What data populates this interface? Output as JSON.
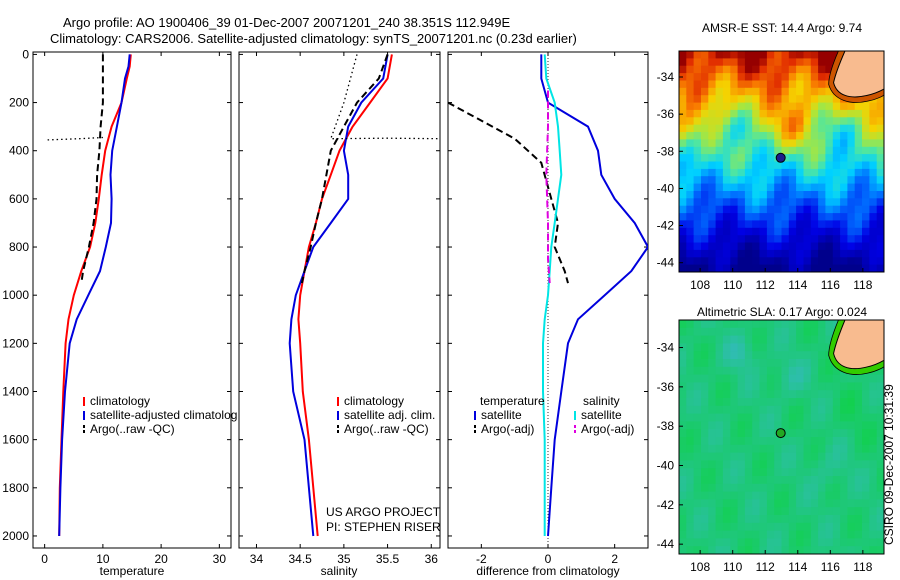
{
  "header": {
    "line1": "Argo profile: AO 1900406_39 01-Dec-2007 20071201_240 38.351S 112.949E",
    "line2": "Climatology: CARS2006. Satellite-adjusted climatology: synTS_20071201.nc (0.23d earlier)"
  },
  "side_text": "CSIRO 09-Dec-2007 10:31:39",
  "colors": {
    "climatology": "#ff0000",
    "satellite": "#0000dd",
    "argo": "#000000",
    "satellite_salinity": "#00e5e5",
    "argo_adj_salinity": "#e000e0",
    "land": "#f8bb8f"
  },
  "chart_data": [
    {
      "type": "line",
      "panel": "temperature",
      "xlabel": "temperature",
      "ylabel": "",
      "xlim": [
        -2,
        32
      ],
      "ylim": [
        2050,
        -10
      ],
      "y_reversed": true,
      "xticks": [
        0,
        10,
        20,
        30
      ],
      "yticks": [
        0,
        200,
        400,
        600,
        800,
        1000,
        1200,
        1400,
        1600,
        1800,
        2000
      ],
      "legend": [
        "climatology",
        "satellite-adjusted climatolog",
        "Argo(..raw -QC)"
      ],
      "series": [
        {
          "name": "climatology",
          "style": "solid",
          "color": "#ff0000",
          "points": [
            [
              14.8,
              0
            ],
            [
              14.6,
              50
            ],
            [
              14.1,
              100
            ],
            [
              13.2,
              200
            ],
            [
              11.5,
              300
            ],
            [
              10.4,
              400
            ],
            [
              9.8,
              500
            ],
            [
              9.3,
              600
            ],
            [
              8.7,
              700
            ],
            [
              7.8,
              800
            ],
            [
              6.3,
              900
            ],
            [
              5.0,
              1000
            ],
            [
              4.1,
              1100
            ],
            [
              3.6,
              1200
            ],
            [
              3.2,
              1400
            ],
            [
              2.9,
              1600
            ],
            [
              2.6,
              1800
            ],
            [
              2.5,
              2000
            ]
          ]
        },
        {
          "name": "satellite-adjusted climatolog",
          "style": "solid",
          "color": "#0000dd",
          "points": [
            [
              14.6,
              0
            ],
            [
              14.4,
              50
            ],
            [
              13.8,
              100
            ],
            [
              13.2,
              200
            ],
            [
              12.4,
              300
            ],
            [
              11.6,
              400
            ],
            [
              11.3,
              500
            ],
            [
              11.5,
              600
            ],
            [
              11.4,
              700
            ],
            [
              10.5,
              800
            ],
            [
              9.5,
              900
            ],
            [
              7.5,
              1000
            ],
            [
              5.5,
              1100
            ],
            [
              4.3,
              1200
            ],
            [
              3.5,
              1400
            ],
            [
              3.0,
              1600
            ],
            [
              2.7,
              1800
            ],
            [
              2.5,
              2000
            ]
          ]
        },
        {
          "name": "Argo(..raw -QC)",
          "style": "dashed",
          "color": "#000000",
          "points": [
            [
              10.0,
              0
            ],
            [
              10.0,
              100
            ],
            [
              10.0,
              200
            ],
            [
              9.6,
              300
            ],
            [
              9.4,
              400
            ],
            [
              9.0,
              500
            ],
            [
              8.9,
              600
            ],
            [
              8.4,
              700
            ],
            [
              7.6,
              800
            ],
            [
              6.6,
              900
            ],
            [
              6.3,
              950
            ]
          ]
        },
        {
          "name": "",
          "style": "dotted",
          "color": "#000000",
          "points": [
            [
              0.5,
              355
            ],
            [
              6,
              350
            ],
            [
              10,
              345
            ]
          ]
        }
      ]
    },
    {
      "type": "line",
      "panel": "salinity",
      "xlabel": "salinity",
      "ylabel": "",
      "xlim": [
        33.8,
        36.1
      ],
      "ylim": [
        2050,
        -10
      ],
      "y_reversed": true,
      "xticks": [
        34,
        34.5,
        35,
        35.5,
        36
      ],
      "legend": [
        "climatology",
        "satellite adj. clim.",
        "Argo(..raw -QC)"
      ],
      "annotations": [
        "US ARGO PROJECT",
        "PI: STEPHEN RISER"
      ],
      "series": [
        {
          "name": "climatology",
          "style": "solid",
          "color": "#ff0000",
          "points": [
            [
              35.55,
              0
            ],
            [
              35.5,
              100
            ],
            [
              35.3,
              200
            ],
            [
              35.1,
              300
            ],
            [
              34.95,
              400
            ],
            [
              34.85,
              500
            ],
            [
              34.75,
              600
            ],
            [
              34.68,
              700
            ],
            [
              34.6,
              800
            ],
            [
              34.55,
              900
            ],
            [
              34.5,
              1000
            ],
            [
              34.48,
              1100
            ],
            [
              34.5,
              1200
            ],
            [
              34.53,
              1400
            ],
            [
              34.6,
              1600
            ],
            [
              34.65,
              1800
            ],
            [
              34.7,
              2000
            ]
          ]
        },
        {
          "name": "satellite adj. clim.",
          "style": "solid",
          "color": "#0000dd",
          "points": [
            [
              35.5,
              0
            ],
            [
              35.45,
              100
            ],
            [
              35.2,
              200
            ],
            [
              35.05,
              300
            ],
            [
              35.0,
              400
            ],
            [
              35.05,
              500
            ],
            [
              35.05,
              600
            ],
            [
              34.85,
              700
            ],
            [
              34.65,
              800
            ],
            [
              34.55,
              900
            ],
            [
              34.45,
              1000
            ],
            [
              34.4,
              1100
            ],
            [
              34.38,
              1200
            ],
            [
              34.42,
              1400
            ],
            [
              34.55,
              1600
            ],
            [
              34.6,
              1800
            ],
            [
              34.65,
              2000
            ]
          ]
        },
        {
          "name": "Argo(..raw -QC)",
          "style": "dashed",
          "color": "#000000",
          "points": [
            [
              35.5,
              0
            ],
            [
              35.4,
              100
            ],
            [
              35.15,
              200
            ],
            [
              35.0,
              300
            ],
            [
              34.85,
              400
            ],
            [
              34.8,
              500
            ],
            [
              34.75,
              600
            ],
            [
              34.68,
              700
            ],
            [
              34.62,
              800
            ],
            [
              34.55,
              900
            ],
            [
              34.52,
              950
            ]
          ]
        },
        {
          "name": "",
          "style": "dotted",
          "color": "#000000",
          "points": [
            [
              35.15,
              0
            ],
            [
              35.0,
              200
            ],
            [
              34.85,
              350
            ],
            [
              35.5,
              348
            ],
            [
              36.1,
              350
            ]
          ]
        }
      ]
    },
    {
      "type": "line",
      "panel": "difference",
      "xlabel": "difference from climatology",
      "ylabel": "",
      "xlim": [
        -3,
        3
      ],
      "ylim": [
        2050,
        -10
      ],
      "y_reversed": true,
      "xticks": [
        -2,
        0,
        2
      ],
      "legend": [
        "temperature",
        "satellite",
        "Argo(-adj)",
        "salinity",
        "satellite",
        "Argo(-adj)"
      ],
      "series": [
        {
          "name": "temperature satellite",
          "style": "solid",
          "color": "#0000dd",
          "points": [
            [
              -0.2,
              0
            ],
            [
              -0.2,
              100
            ],
            [
              0.0,
              200
            ],
            [
              1.2,
              300
            ],
            [
              1.5,
              400
            ],
            [
              1.6,
              500
            ],
            [
              2.0,
              600
            ],
            [
              2.6,
              700
            ],
            [
              3.0,
              800
            ],
            [
              2.5,
              900
            ],
            [
              1.7,
              1000
            ],
            [
              0.9,
              1100
            ],
            [
              0.6,
              1200
            ],
            [
              0.4,
              1400
            ],
            [
              0.2,
              1600
            ],
            [
              0.1,
              1800
            ],
            [
              0.0,
              2000
            ]
          ]
        },
        {
          "name": "temperature Argo(-adj)",
          "style": "dashed",
          "color": "#000000",
          "points": [
            [
              -3.0,
              200
            ],
            [
              -1.0,
              350
            ],
            [
              -0.2,
              450
            ],
            [
              0.1,
              600
            ],
            [
              0.3,
              700
            ],
            [
              0.2,
              800
            ],
            [
              0.5,
              900
            ],
            [
              0.6,
              950
            ]
          ]
        },
        {
          "name": "salinity satellite",
          "style": "solid",
          "color": "#00e5e5",
          "points": [
            [
              -0.1,
              0
            ],
            [
              -0.05,
              100
            ],
            [
              0.2,
              200
            ],
            [
              0.3,
              300
            ],
            [
              0.35,
              400
            ],
            [
              0.4,
              500
            ],
            [
              0.3,
              600
            ],
            [
              0.2,
              700
            ],
            [
              0.1,
              800
            ],
            [
              0.05,
              900
            ],
            [
              0.0,
              1000
            ],
            [
              -0.1,
              1100
            ],
            [
              -0.15,
              1200
            ],
            [
              -0.15,
              1400
            ],
            [
              -0.1,
              1600
            ],
            [
              -0.1,
              1800
            ],
            [
              -0.1,
              2000
            ]
          ]
        },
        {
          "name": "salinity Argo(-adj)",
          "style": "dashed",
          "color": "#e000e0",
          "points": [
            [
              0.0,
              150
            ],
            [
              0.0,
              300
            ],
            [
              -0.05,
              500
            ],
            [
              0.0,
              700
            ],
            [
              0.0,
              850
            ],
            [
              0.05,
              950
            ]
          ]
        }
      ]
    },
    {
      "type": "heatmap",
      "panel": "sst-map",
      "title": "AMSR-E SST: 14.4  Argo: 9.74",
      "xticks": [
        108,
        110,
        112,
        114,
        116,
        118
      ],
      "yticks": [
        -34,
        -36,
        -38,
        -40,
        -42,
        -44
      ],
      "xlim": [
        106.7,
        119.3
      ],
      "ylim": [
        -44.5,
        -32.6
      ],
      "marker": [
        112.95,
        -38.35
      ]
    },
    {
      "type": "heatmap",
      "panel": "sla-map",
      "title": "Altimetric SLA: 0.17  Argo: 0.024",
      "xticks": [
        108,
        110,
        112,
        114,
        116,
        118
      ],
      "yticks": [
        -34,
        -36,
        -38,
        -40,
        -42,
        -44
      ],
      "xlim": [
        106.7,
        119.3
      ],
      "ylim": [
        -44.5,
        -32.6
      ],
      "marker": [
        112.95,
        -38.35
      ]
    }
  ]
}
